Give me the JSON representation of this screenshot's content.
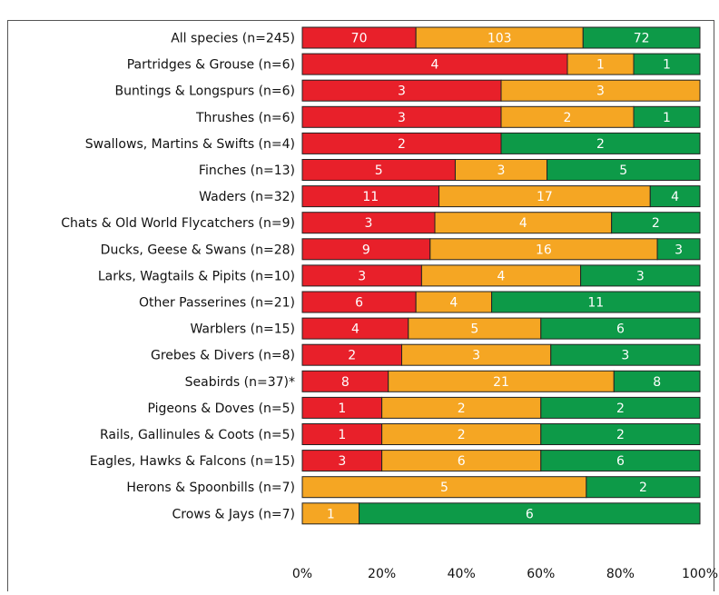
{
  "chart_data": {
    "type": "bar",
    "orientation": "horizontal",
    "stacked": "percent",
    "categories": [
      "All species (n=245)",
      "Partridges & Grouse (n=6)",
      "Buntings & Longspurs (n=6)",
      "Thrushes (n=6)",
      "Swallows, Martins & Swifts (n=4)",
      "Finches (n=13)",
      "Waders (n=32)",
      "Chats & Old World Flycatchers (n=9)",
      "Ducks, Geese & Swans (n=28)",
      "Larks, Wagtails & Pipits (n=10)",
      "Other Passerines (n=21)",
      "Warblers (n=15)",
      "Grebes & Divers (n=8)",
      "Seabirds (n=37)*",
      "Pigeons & Doves (n=5)",
      "Rails, Gallinules & Coots (n=5)",
      "Eagles, Hawks & Falcons (n=15)",
      "Herons & Spoonbills (n=7)",
      "Crows & Jays (n=7)"
    ],
    "series": [
      {
        "color": "#e8202a",
        "values": [
          70,
          4,
          3,
          3,
          2,
          5,
          11,
          3,
          9,
          3,
          6,
          4,
          2,
          8,
          1,
          1,
          3,
          null,
          null
        ]
      },
      {
        "color": "#f5a623",
        "values": [
          103,
          1,
          3,
          2,
          null,
          3,
          17,
          4,
          16,
          4,
          4,
          5,
          3,
          21,
          2,
          2,
          6,
          5,
          1
        ]
      },
      {
        "color": "#0d9a48",
        "values": [
          72,
          1,
          null,
          1,
          2,
          5,
          4,
          2,
          3,
          3,
          11,
          6,
          3,
          8,
          2,
          2,
          6,
          2,
          6
        ]
      }
    ],
    "xlim": [
      0,
      100
    ],
    "xticks": [
      {
        "value": 0,
        "label": "0%"
      },
      {
        "value": 20,
        "label": "20%"
      },
      {
        "value": 40,
        "label": "40%"
      },
      {
        "value": 60,
        "label": "60%"
      },
      {
        "value": 80,
        "label": "80%"
      },
      {
        "value": 100,
        "label": "100%"
      }
    ]
  }
}
